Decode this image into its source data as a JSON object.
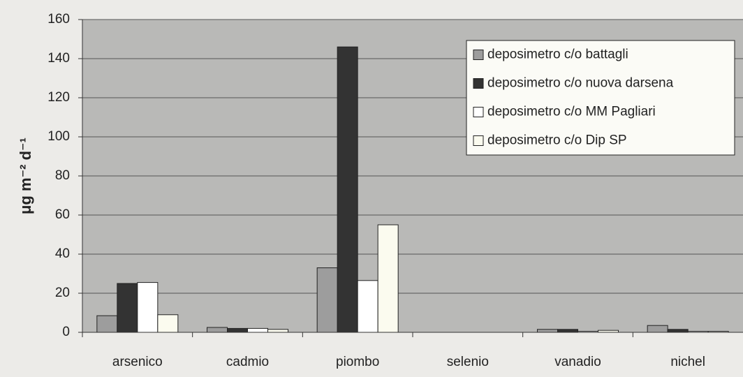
{
  "chart_data": {
    "type": "bar",
    "y_label": "μg m⁻² d⁻¹",
    "categories": [
      "arsenico",
      "cadmio",
      "piombo",
      "selenio",
      "vanadio",
      "nichel"
    ],
    "series": [
      {
        "name": "deposimetro c/o battagli",
        "color": "#9d9d9d",
        "values": [
          8.5,
          2.5,
          33,
          0,
          1.5,
          3.5
        ]
      },
      {
        "name": "deposimetro c/o nuova darsena",
        "color": "#333333",
        "values": [
          25,
          2,
          146,
          0,
          1.5,
          1.5
        ]
      },
      {
        "name": "deposimetro c/o MM Pagliari",
        "color": "#ffffff",
        "values": [
          25.5,
          2,
          26.5,
          0,
          0.5,
          0.5
        ]
      },
      {
        "name": "deposimetro c/o Dip SP",
        "color": "#fbfbef",
        "values": [
          9,
          1.5,
          55,
          0,
          1,
          0.5
        ]
      }
    ],
    "ylim": [
      0,
      160
    ],
    "yticks": [
      0,
      20,
      40,
      60,
      80,
      100,
      120,
      140,
      160
    ],
    "grid": true,
    "legend": "top-right"
  }
}
